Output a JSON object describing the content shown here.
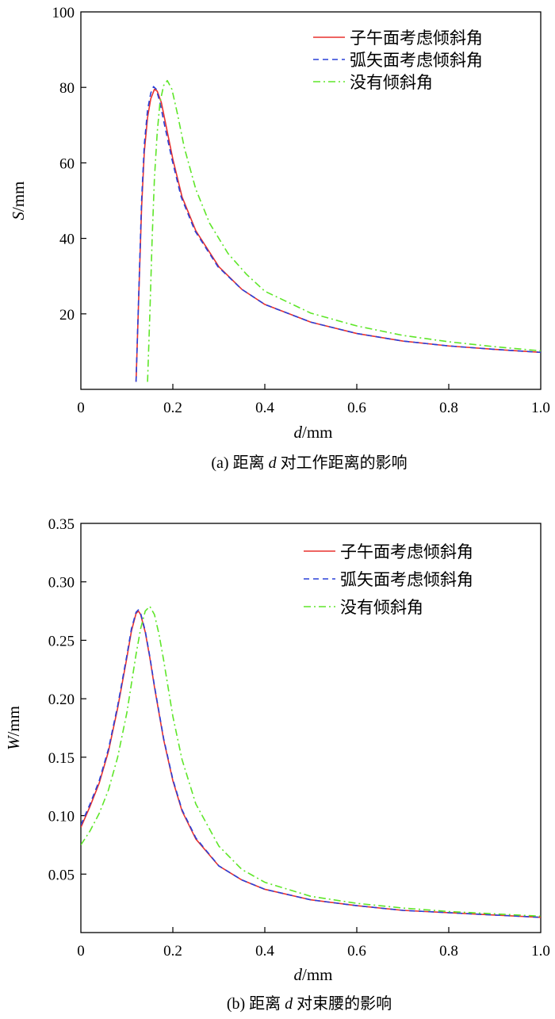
{
  "chart_data": [
    {
      "type": "line",
      "panel": "a",
      "caption": {
        "prefix": "(a) 距离 ",
        "var": "d",
        "suffix": " 对工作距离的影响"
      },
      "xlabel": {
        "var": "d",
        "unit": "/mm"
      },
      "ylabel": {
        "var": "S",
        "unit": "/mm"
      },
      "xlim": [
        0,
        1.0
      ],
      "ylim": [
        0,
        100
      ],
      "xticks": [
        {
          "v": 0,
          "label": "0"
        },
        {
          "v": 0.2,
          "label": "0.2"
        },
        {
          "v": 0.4,
          "label": "0.4"
        },
        {
          "v": 0.6,
          "label": "0.6"
        },
        {
          "v": 0.8,
          "label": "0.8"
        },
        {
          "v": 1.0,
          "label": "1.0"
        }
      ],
      "yticks": [
        {
          "v": 20,
          "label": "20"
        },
        {
          "v": 40,
          "label": "40"
        },
        {
          "v": 60,
          "label": "60"
        },
        {
          "v": 80,
          "label": "80"
        },
        {
          "v": 100,
          "label": "100"
        }
      ],
      "legend_position": "top-right",
      "series": [
        {
          "name": "子午面考虑倾斜角",
          "color": "#e8322f",
          "dash": "",
          "x": [
            0.12,
            0.126,
            0.132,
            0.138,
            0.145,
            0.152,
            0.16,
            0.166,
            0.175,
            0.185,
            0.2,
            0.22,
            0.25,
            0.3,
            0.35,
            0.4,
            0.5,
            0.6,
            0.7,
            0.8,
            0.9,
            1.0
          ],
          "y": [
            2,
            25,
            48,
            63,
            72,
            77,
            79.5,
            79,
            76,
            70,
            61,
            51,
            42,
            32.5,
            26.5,
            22.5,
            17.8,
            14.8,
            12.8,
            11.5,
            10.6,
            9.8
          ]
        },
        {
          "name": "弧矢面考虑倾斜角",
          "color": "#2a40d8",
          "dash": "7,5",
          "x": [
            0.12,
            0.126,
            0.132,
            0.138,
            0.145,
            0.152,
            0.158,
            0.164,
            0.172,
            0.182,
            0.198,
            0.218,
            0.248,
            0.298,
            0.35,
            0.4,
            0.5,
            0.6,
            0.7,
            0.8,
            0.9,
            1.0
          ],
          "y": [
            2,
            26,
            50,
            65,
            74,
            78.5,
            80.2,
            79.5,
            76,
            70,
            61,
            51,
            42,
            32.5,
            26.5,
            22.5,
            17.8,
            14.8,
            12.8,
            11.5,
            10.6,
            9.8
          ]
        },
        {
          "name": "没有倾斜角",
          "color": "#5ee629",
          "dash": "9,4,2,4",
          "x": [
            0.145,
            0.15,
            0.155,
            0.16,
            0.166,
            0.172,
            0.18,
            0.188,
            0.198,
            0.21,
            0.225,
            0.25,
            0.28,
            0.32,
            0.36,
            0.4,
            0.5,
            0.6,
            0.7,
            0.8,
            0.9,
            1.0
          ],
          "y": [
            2,
            20,
            40,
            56,
            68,
            76,
            80.5,
            81.8,
            79.5,
            73,
            64,
            53,
            44,
            36,
            30.5,
            26,
            20.2,
            16.8,
            14.3,
            12.6,
            11.3,
            10.2
          ]
        }
      ]
    },
    {
      "type": "line",
      "panel": "b",
      "caption": {
        "prefix": "(b) 距离 ",
        "var": "d",
        "suffix": " 对束腰的影响"
      },
      "xlabel": {
        "var": "d",
        "unit": "/mm"
      },
      "ylabel": {
        "var": "W",
        "unit": "/mm"
      },
      "xlim": [
        0,
        1.0
      ],
      "ylim": [
        0,
        0.35
      ],
      "xticks": [
        {
          "v": 0,
          "label": "0"
        },
        {
          "v": 0.2,
          "label": "0.2"
        },
        {
          "v": 0.4,
          "label": "0.4"
        },
        {
          "v": 0.6,
          "label": "0.6"
        },
        {
          "v": 0.8,
          "label": "0.8"
        },
        {
          "v": 1.0,
          "label": "1.0"
        }
      ],
      "yticks": [
        {
          "v": 0.05,
          "label": "0.05"
        },
        {
          "v": 0.1,
          "label": "0.10"
        },
        {
          "v": 0.15,
          "label": "0.15"
        },
        {
          "v": 0.2,
          "label": "0.20"
        },
        {
          "v": 0.25,
          "label": "0.25"
        },
        {
          "v": 0.3,
          "label": "0.30"
        },
        {
          "v": 0.35,
          "label": "0.35"
        }
      ],
      "legend_position": "top-right",
      "series": [
        {
          "name": "子午面考虑倾斜角",
          "color": "#e8322f",
          "dash": "",
          "x": [
            0.0,
            0.02,
            0.04,
            0.06,
            0.08,
            0.1,
            0.11,
            0.12,
            0.125,
            0.13,
            0.14,
            0.15,
            0.16,
            0.18,
            0.2,
            0.22,
            0.25,
            0.3,
            0.35,
            0.4,
            0.5,
            0.6,
            0.7,
            0.8,
            0.9,
            1.0
          ],
          "y": [
            0.09,
            0.108,
            0.128,
            0.155,
            0.192,
            0.235,
            0.258,
            0.273,
            0.275,
            0.272,
            0.257,
            0.235,
            0.21,
            0.165,
            0.13,
            0.104,
            0.08,
            0.057,
            0.045,
            0.037,
            0.028,
            0.023,
            0.019,
            0.017,
            0.015,
            0.013
          ]
        },
        {
          "name": "弧矢面考虑倾斜角",
          "color": "#2a40d8",
          "dash": "7,5",
          "x": [
            0.0,
            0.02,
            0.04,
            0.06,
            0.08,
            0.1,
            0.11,
            0.12,
            0.125,
            0.13,
            0.14,
            0.15,
            0.16,
            0.18,
            0.2,
            0.22,
            0.25,
            0.3,
            0.35,
            0.4,
            0.5,
            0.6,
            0.7,
            0.8,
            0.9,
            1.0
          ],
          "y": [
            0.092,
            0.11,
            0.13,
            0.157,
            0.194,
            0.237,
            0.26,
            0.274,
            0.276,
            0.273,
            0.258,
            0.236,
            0.211,
            0.166,
            0.131,
            0.105,
            0.081,
            0.057,
            0.045,
            0.037,
            0.028,
            0.023,
            0.019,
            0.017,
            0.015,
            0.013
          ]
        },
        {
          "name": "没有倾斜角",
          "color": "#5ee629",
          "dash": "9,4,2,4",
          "x": [
            0.0,
            0.02,
            0.04,
            0.06,
            0.08,
            0.1,
            0.12,
            0.13,
            0.14,
            0.15,
            0.16,
            0.17,
            0.18,
            0.2,
            0.22,
            0.25,
            0.3,
            0.35,
            0.4,
            0.5,
            0.6,
            0.7,
            0.8,
            0.9,
            1.0
          ],
          "y": [
            0.075,
            0.087,
            0.102,
            0.122,
            0.15,
            0.188,
            0.238,
            0.26,
            0.275,
            0.279,
            0.272,
            0.255,
            0.233,
            0.185,
            0.148,
            0.11,
            0.074,
            0.054,
            0.043,
            0.031,
            0.025,
            0.021,
            0.018,
            0.016,
            0.014
          ]
        }
      ]
    }
  ]
}
